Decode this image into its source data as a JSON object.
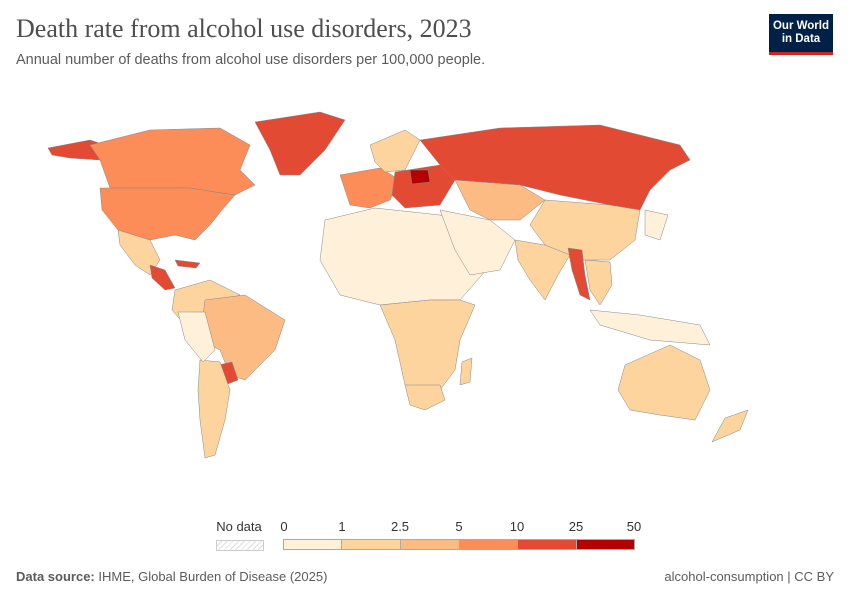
{
  "header": {
    "title": "Death rate from alcohol use disorders, 2023",
    "subtitle": "Annual number of deaths from alcohol use disorders per 100,000 people.",
    "logo": "Our World in Data"
  },
  "legend": {
    "no_data_label": "No data",
    "ticks": [
      "0",
      "1",
      "2.5",
      "5",
      "10",
      "25",
      "50"
    ],
    "colors": [
      "#fef0d9",
      "#fdd49e",
      "#fdbb84",
      "#fc8d59",
      "#e34a33",
      "#b30000"
    ]
  },
  "footer": {
    "source_label": "Data source:",
    "source": "IHME, Global Burden of Disease (2025)",
    "license": "alcohol-consumption | CC BY"
  }
}
